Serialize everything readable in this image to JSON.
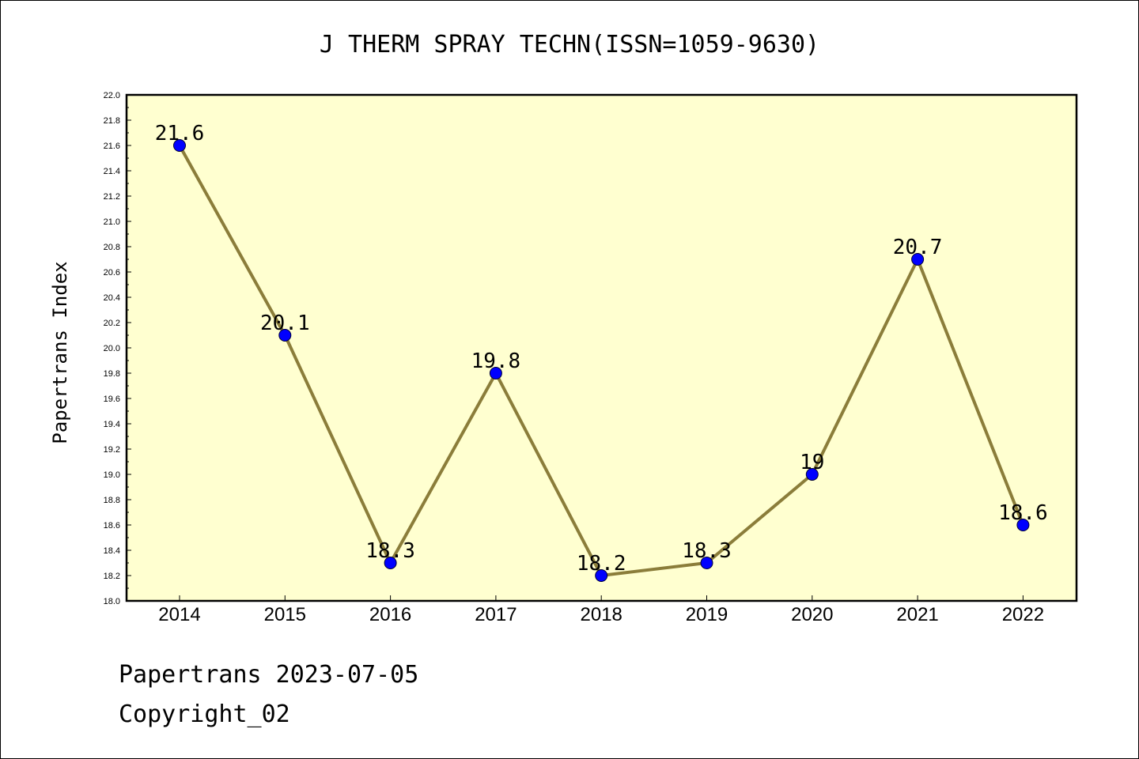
{
  "chart_data": {
    "type": "line",
    "title": "J THERM SPRAY TECHN(ISSN=1059-9630)",
    "ylabel": "Papertrans Index",
    "xlabel": "",
    "categories": [
      "2014",
      "2015",
      "2016",
      "2017",
      "2018",
      "2019",
      "2020",
      "2021",
      "2022"
    ],
    "values": [
      21.6,
      20.1,
      18.3,
      19.8,
      18.2,
      18.3,
      19.0,
      20.7,
      18.6
    ],
    "point_labels": [
      "21.6",
      "20.1",
      "18.3",
      "19.8",
      "18.2",
      "18.3",
      "19",
      "20.7",
      "18.6"
    ],
    "ylim": [
      18.0,
      22.0
    ],
    "yticks": [
      "18.0",
      "18.2",
      "18.4",
      "18.6",
      "18.8",
      "19.0",
      "19.2",
      "19.4",
      "19.6",
      "19.8",
      "20.0",
      "20.2",
      "20.4",
      "20.6",
      "20.8",
      "21.0",
      "21.2",
      "21.4",
      "21.6",
      "21.8",
      "22.0"
    ],
    "grid": false,
    "plot_background": "#ffffd0",
    "line_color": "#8b7d3a",
    "marker_color": "#0000ff"
  },
  "footer": {
    "line1": "Papertrans 2023-07-05",
    "line2": "Copyright_02"
  }
}
